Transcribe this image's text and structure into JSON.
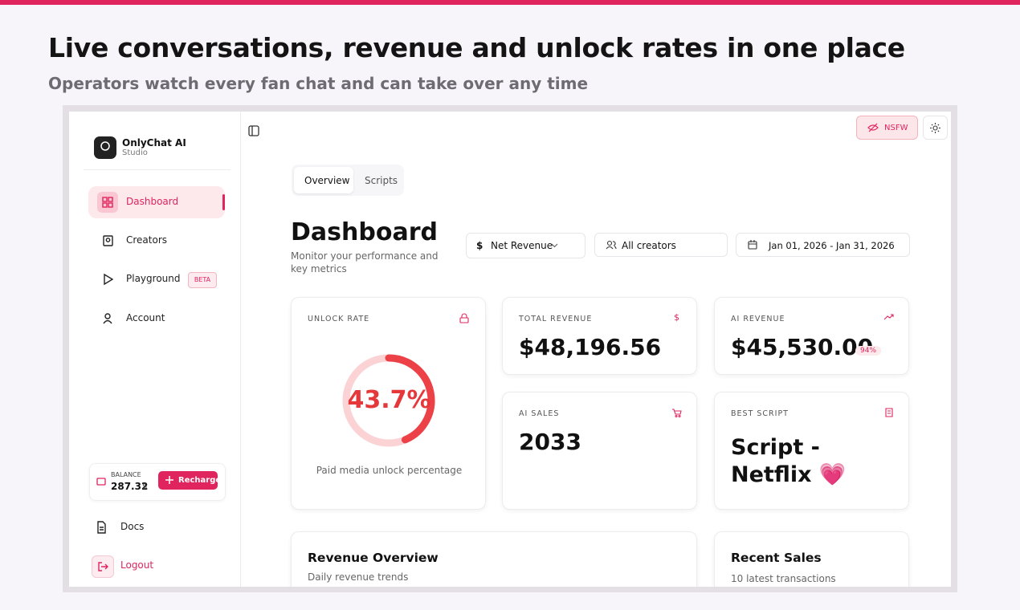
{
  "header": {
    "title": "Live conversations, revenue and unlock rates in one place",
    "subtitle": "Operators watch every fan chat and can take over any time"
  },
  "sidebar": {
    "brand": {
      "name": "OnlyChat AI",
      "sub": "Studio"
    },
    "nav": [
      {
        "label": "Dashboard"
      },
      {
        "label": "Creators"
      },
      {
        "label": "Playground",
        "badge": "BETA"
      },
      {
        "label": "Account"
      }
    ],
    "balance": {
      "label": "BALANCE",
      "amount": "287.32",
      "unit": "$",
      "button": "Recharge"
    },
    "footer": [
      {
        "label": "Docs"
      },
      {
        "label": "Logout"
      }
    ]
  },
  "topbar": {
    "nsfw": "NSFW"
  },
  "tabs": [
    "Overview",
    "Scripts"
  ],
  "page": {
    "title": "Dashboard",
    "subtitle": "Monitor your performance and key metrics"
  },
  "filters": [
    "Net Revenue",
    "All creators",
    "Jan 01, 2026 - Jan 31, 2026"
  ],
  "cards": {
    "unlock_rate": {
      "label": "UNLOCK RATE",
      "value": 43.7,
      "value_label": "43.7%",
      "caption": "Paid media unlock percentage"
    },
    "total_revenue": {
      "label": "TOTAL REVENUE",
      "value": "$48,196.56"
    },
    "ai_revenue": {
      "label": "AI REVENUE",
      "value": "$45,530.00",
      "badge": "94%"
    },
    "ai_sales": {
      "label": "AI SALES",
      "value": "2033"
    },
    "best_script": {
      "label": "BEST SCRIPT",
      "value": "Script - Netflix 💗"
    }
  },
  "panels": [
    {
      "title": "Revenue Overview",
      "subtitle": "Daily revenue trends"
    },
    {
      "title": "Recent Sales",
      "subtitle": "10 latest transactions"
    }
  ]
}
